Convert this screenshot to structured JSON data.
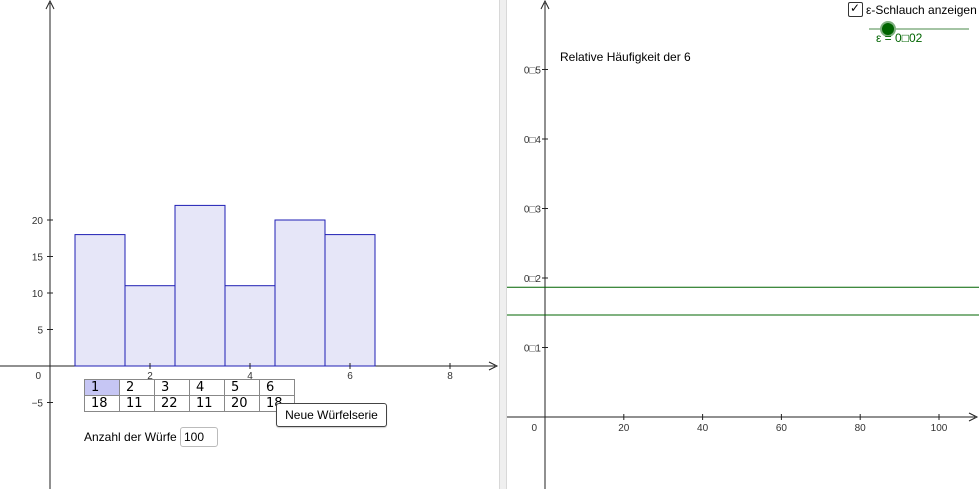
{
  "left_chart": {
    "y_ticks": [
      "−5",
      "5",
      "10",
      "15",
      "20"
    ],
    "x_ticks": [
      "2",
      "4",
      "6",
      "8"
    ],
    "origin_label": "0",
    "bar_fill": "#e6e6f8",
    "bar_stroke": "#1f1fb4",
    "bars": [
      {
        "face": 1,
        "count": 18
      },
      {
        "face": 2,
        "count": 11
      },
      {
        "face": 3,
        "count": 22
      },
      {
        "face": 4,
        "count": 11
      },
      {
        "face": 5,
        "count": 20
      },
      {
        "face": 6,
        "count": 18
      }
    ]
  },
  "table": {
    "faces": [
      "1",
      "2",
      "3",
      "4",
      "5",
      "6"
    ],
    "counts": [
      "18",
      "11",
      "22",
      "11",
      "20",
      "18"
    ]
  },
  "new_series_button": "Neue Würfelserie",
  "throws": {
    "label": "Anzahl der Würfe",
    "value": "100"
  },
  "right_chart": {
    "title": "Relative Häufigkeit der 6",
    "y_ticks": [
      "0□1",
      "0□2",
      "0□3",
      "0□4",
      "0□5"
    ],
    "x_ticks": [
      "20",
      "40",
      "60",
      "80",
      "100"
    ],
    "origin_label": "0",
    "band_color": "#006400",
    "band_center": 0.1667,
    "epsilon": 0.02
  },
  "epsilon_checkbox": {
    "label": "ε-Schlauch anzeigen",
    "checked": true,
    "mark": "✓"
  },
  "epsilon_slider": {
    "label": "ε = 0□02",
    "knob_color": "#006400"
  },
  "chart_data": [
    {
      "type": "bar",
      "categories": [
        "1",
        "2",
        "3",
        "4",
        "5",
        "6"
      ],
      "values": [
        18,
        11,
        22,
        11,
        20,
        18
      ],
      "title": "",
      "xlabel": "",
      "ylabel": "",
      "xlim": [
        0,
        8
      ],
      "ylim": [
        -5,
        25
      ],
      "grid": false
    },
    {
      "type": "line",
      "title": "Relative Häufigkeit der 6",
      "series": [],
      "horizontal_lines": [
        0.1467,
        0.1867
      ],
      "xlim": [
        0,
        100
      ],
      "ylim": [
        0,
        0.5
      ],
      "grid": false
    }
  ]
}
